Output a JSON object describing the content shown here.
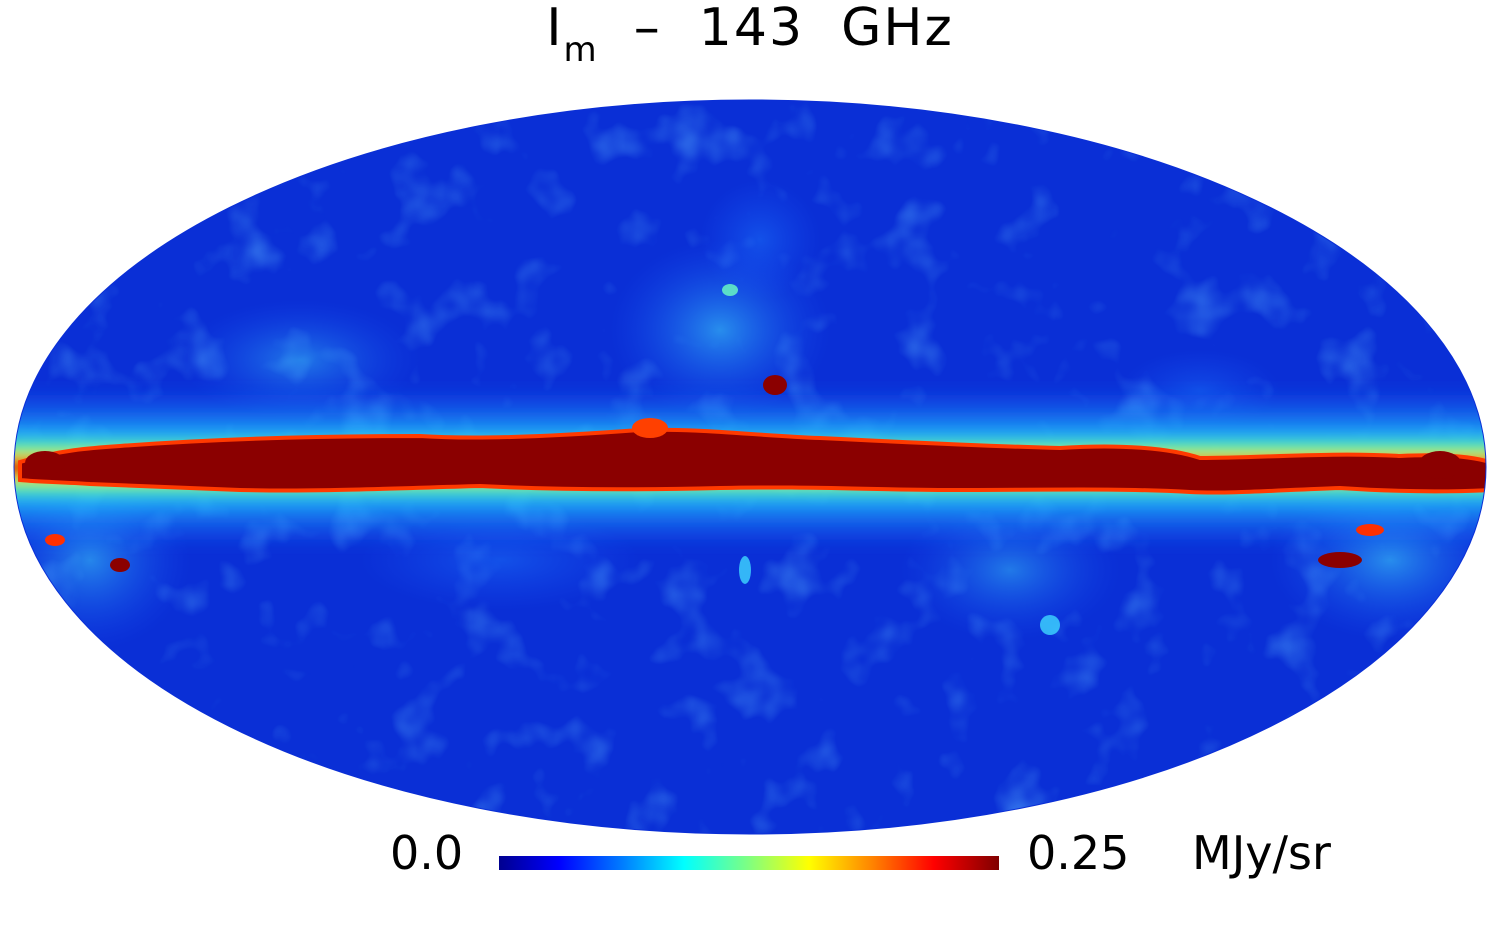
{
  "title": {
    "main": "I",
    "subscript": "m",
    "rest": "  –  143  GHz"
  },
  "colorbar": {
    "min_label": "0.0",
    "max_label": "0.25",
    "unit": "MJy/sr",
    "colormap": "jet",
    "stops": [
      "#00008f",
      "#0000ff",
      "#0080ff",
      "#00ffff",
      "#80ff80",
      "#ffff00",
      "#ff8000",
      "#ff0000",
      "#800000"
    ]
  },
  "map": {
    "projection": "mollweide",
    "background_color": "#0a2fd6",
    "band_color": "#8b0000"
  }
}
